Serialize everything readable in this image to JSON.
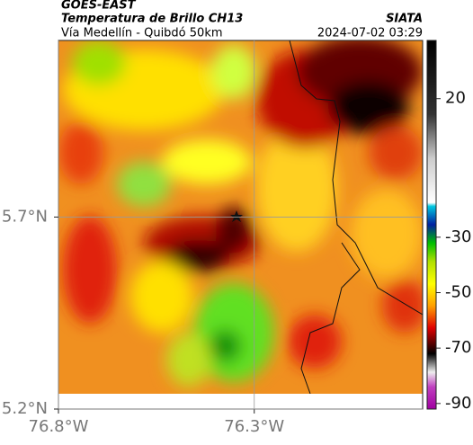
{
  "header": {
    "satellite": "GOES-EAST",
    "product": "Temperatura de Brillo CH13",
    "region": "Vía Medellín - Quibdó 50km",
    "source": "SIATA",
    "timestamp": "2024-07-02 03:29"
  },
  "map": {
    "lonlim": [
      -76.8,
      -75.87
    ],
    "latlim": [
      5.2,
      6.16
    ],
    "grid": true,
    "xticks": [
      {
        "value": -76.8,
        "label": "76.8°W"
      },
      {
        "value": -76.3,
        "label": "76.3°W"
      }
    ],
    "yticks": [
      {
        "value": 5.2,
        "label": "5.2°N"
      },
      {
        "value": 5.7,
        "label": "5.7°N"
      }
    ]
  },
  "colorbar": {
    "clim": [
      -92,
      41
    ],
    "ticks": [
      20,
      -30,
      -50,
      -70,
      -90
    ]
  }
}
